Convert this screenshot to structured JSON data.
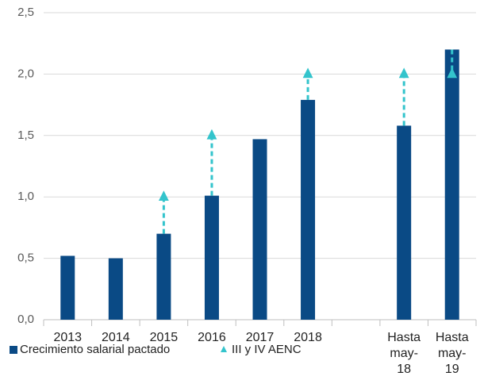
{
  "chart_data": {
    "type": "bar",
    "categories": [
      "2013",
      "2014",
      "2015",
      "2016",
      "2017",
      "2018",
      null,
      "Hasta may-18",
      "Hasta may-19"
    ],
    "series": [
      {
        "name": "Crecimiento salarial pactado",
        "color": "#0a4a85",
        "values": [
          0.52,
          0.5,
          0.7,
          1.01,
          1.47,
          1.79,
          null,
          1.58,
          2.2
        ]
      },
      {
        "name": "III y IV AENC",
        "color": "#33c4cc",
        "values": [
          null,
          null,
          1.0,
          1.5,
          null,
          2.0,
          null,
          2.0,
          2.0
        ]
      }
    ],
    "ylim": [
      0,
      2.5
    ],
    "yticks": [
      {
        "value": 0,
        "label": "0,0"
      },
      {
        "value": 0.5,
        "label": "0,5"
      },
      {
        "value": 1,
        "label": "1,0"
      },
      {
        "value": 1.5,
        "label": "1,5"
      },
      {
        "value": 2,
        "label": "2,0"
      },
      {
        "value": 2.5,
        "label": "2,5"
      }
    ],
    "grid": true,
    "legend": "bottom"
  }
}
